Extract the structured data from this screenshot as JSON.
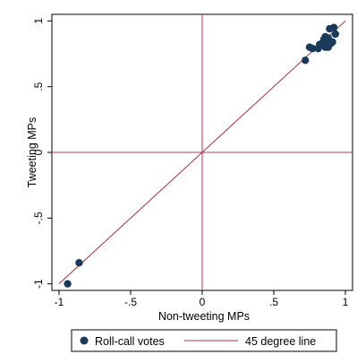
{
  "chart_data": {
    "type": "scatter",
    "xlabel": "Non-tweeting MPs",
    "ylabel": "Tweeting MPs",
    "xlim": [
      -1.05,
      1.05
    ],
    "ylim": [
      -1.05,
      1.05
    ],
    "x_ticks": [
      -1,
      -0.5,
      0,
      0.5,
      1
    ],
    "x_tick_labels": [
      "-1",
      "-.5",
      "0",
      ".5",
      "1"
    ],
    "y_ticks": [
      -1,
      -0.5,
      0,
      0.5,
      1
    ],
    "y_tick_labels": [
      "-1",
      "-.5",
      "0",
      ".5",
      "1"
    ],
    "reference_lines": {
      "x": 0,
      "y": 0,
      "color": "#b03a5a"
    },
    "grid": false,
    "legend_position": "bottom",
    "series": [
      {
        "name": "Roll-call votes",
        "kind": "points",
        "color": "#1a3a5c",
        "points": [
          {
            "x": -0.94,
            "y": -1.0
          },
          {
            "x": -0.86,
            "y": -0.84
          },
          {
            "x": 0.72,
            "y": 0.7
          },
          {
            "x": 0.75,
            "y": 0.8
          },
          {
            "x": 0.77,
            "y": 0.79
          },
          {
            "x": 0.81,
            "y": 0.79
          },
          {
            "x": 0.82,
            "y": 0.82
          },
          {
            "x": 0.84,
            "y": 0.83
          },
          {
            "x": 0.85,
            "y": 0.86
          },
          {
            "x": 0.86,
            "y": 0.8
          },
          {
            "x": 0.87,
            "y": 0.84
          },
          {
            "x": 0.88,
            "y": 0.87
          },
          {
            "x": 0.88,
            "y": 0.8
          },
          {
            "x": 0.89,
            "y": 0.84
          },
          {
            "x": 0.89,
            "y": 0.94
          },
          {
            "x": 0.9,
            "y": 0.83
          },
          {
            "x": 0.91,
            "y": 0.84
          },
          {
            "x": 0.92,
            "y": 0.95
          },
          {
            "x": 0.93,
            "y": 0.9
          },
          {
            "x": 0.86,
            "y": 0.88
          }
        ]
      },
      {
        "name": "45 degree line",
        "kind": "line",
        "color": "#a0303a",
        "points": [
          {
            "x": -1.0,
            "y": -1.0
          },
          {
            "x": 1.0,
            "y": 1.0
          }
        ]
      }
    ]
  }
}
